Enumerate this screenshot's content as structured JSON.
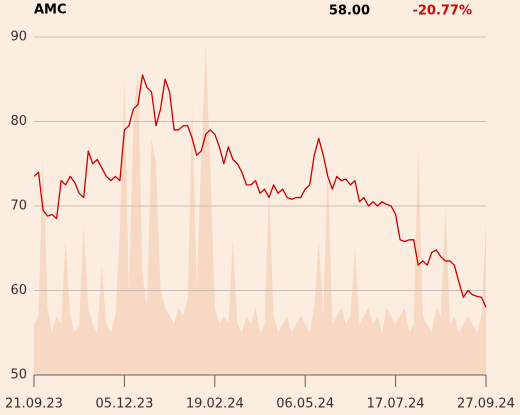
{
  "chart_data": {
    "type": "line",
    "title": "AMC",
    "last_price": "58.00",
    "change": "-20.77%",
    "change_color": "#cc0a0a",
    "categories": [
      "21.09.23",
      null,
      null,
      null,
      null,
      null,
      null,
      null,
      null,
      null,
      null,
      null,
      null,
      null,
      null,
      null,
      null,
      null,
      null,
      null,
      "05.12.23",
      null,
      null,
      null,
      null,
      null,
      null,
      null,
      null,
      null,
      null,
      null,
      null,
      null,
      null,
      null,
      null,
      null,
      null,
      null,
      "19.02.24",
      null,
      null,
      null,
      null,
      null,
      null,
      null,
      null,
      null,
      null,
      null,
      null,
      null,
      null,
      null,
      null,
      null,
      null,
      null,
      "06.05.24",
      null,
      null,
      null,
      null,
      null,
      null,
      null,
      null,
      null,
      null,
      null,
      null,
      null,
      null,
      null,
      null,
      null,
      null,
      null,
      "17.07.24",
      null,
      null,
      null,
      null,
      null,
      null,
      null,
      null,
      null,
      null,
      null,
      null,
      null,
      null,
      null,
      null,
      null,
      null,
      null,
      "27.09.24"
    ],
    "series": [
      {
        "color": "#cc0000",
        "values": [
          73.5,
          74,
          69.5,
          68.8,
          69,
          68.5,
          73,
          72.5,
          73.5,
          72.8,
          71.5,
          71,
          76.5,
          75,
          75.5,
          74.5,
          73.5,
          73,
          73.5,
          73,
          79,
          79.5,
          81.5,
          82,
          85.5,
          84,
          83.5,
          79.5,
          81.5,
          85,
          83.5,
          79,
          79,
          79.5,
          79.5,
          78,
          76,
          76.5,
          78.5,
          79,
          78.5,
          77,
          75,
          77,
          75.5,
          75,
          74,
          72.5,
          72.5,
          73,
          71.5,
          72,
          71,
          72.5,
          71.5,
          72,
          71,
          70.8,
          71,
          71,
          72,
          72.5,
          76,
          78,
          76,
          73.5,
          72,
          73.5,
          73,
          73.2,
          72.5,
          73,
          70.5,
          71,
          70,
          70.5,
          70,
          70.5,
          70.2,
          70,
          69,
          66,
          65.8,
          66,
          66,
          63,
          63.5,
          63,
          64.5,
          64.8,
          64,
          63.5,
          63.5,
          63,
          61,
          59.2,
          60,
          59.5,
          59.3,
          59.2,
          58
        ]
      }
    ],
    "volume": {
      "color": "#f7d8c3",
      "values": [
        56,
        57,
        76,
        58,
        55,
        57,
        56,
        66,
        57,
        55,
        56,
        68,
        58,
        56,
        55,
        63,
        56,
        55,
        57,
        67,
        85,
        60,
        80,
        86,
        62,
        58,
        78,
        75,
        60,
        58,
        57,
        56,
        58,
        57,
        59,
        82,
        60,
        76,
        89,
        75,
        58,
        56,
        57,
        56,
        66,
        56,
        55,
        57,
        56,
        58,
        55,
        56,
        72,
        57,
        55,
        56,
        57,
        55,
        56,
        57,
        56,
        55,
        58,
        66,
        57,
        75,
        56,
        57,
        58,
        56,
        57,
        65,
        56,
        57,
        58,
        56,
        57,
        55,
        58,
        57,
        56,
        57,
        58,
        55,
        56,
        77,
        57,
        56,
        55,
        58,
        57,
        70,
        56,
        57,
        55,
        56,
        57,
        56,
        55,
        57,
        68
      ]
    },
    "ylim": [
      50,
      90
    ],
    "yticks": [
      50,
      60,
      70,
      80,
      90
    ],
    "grid": true
  }
}
